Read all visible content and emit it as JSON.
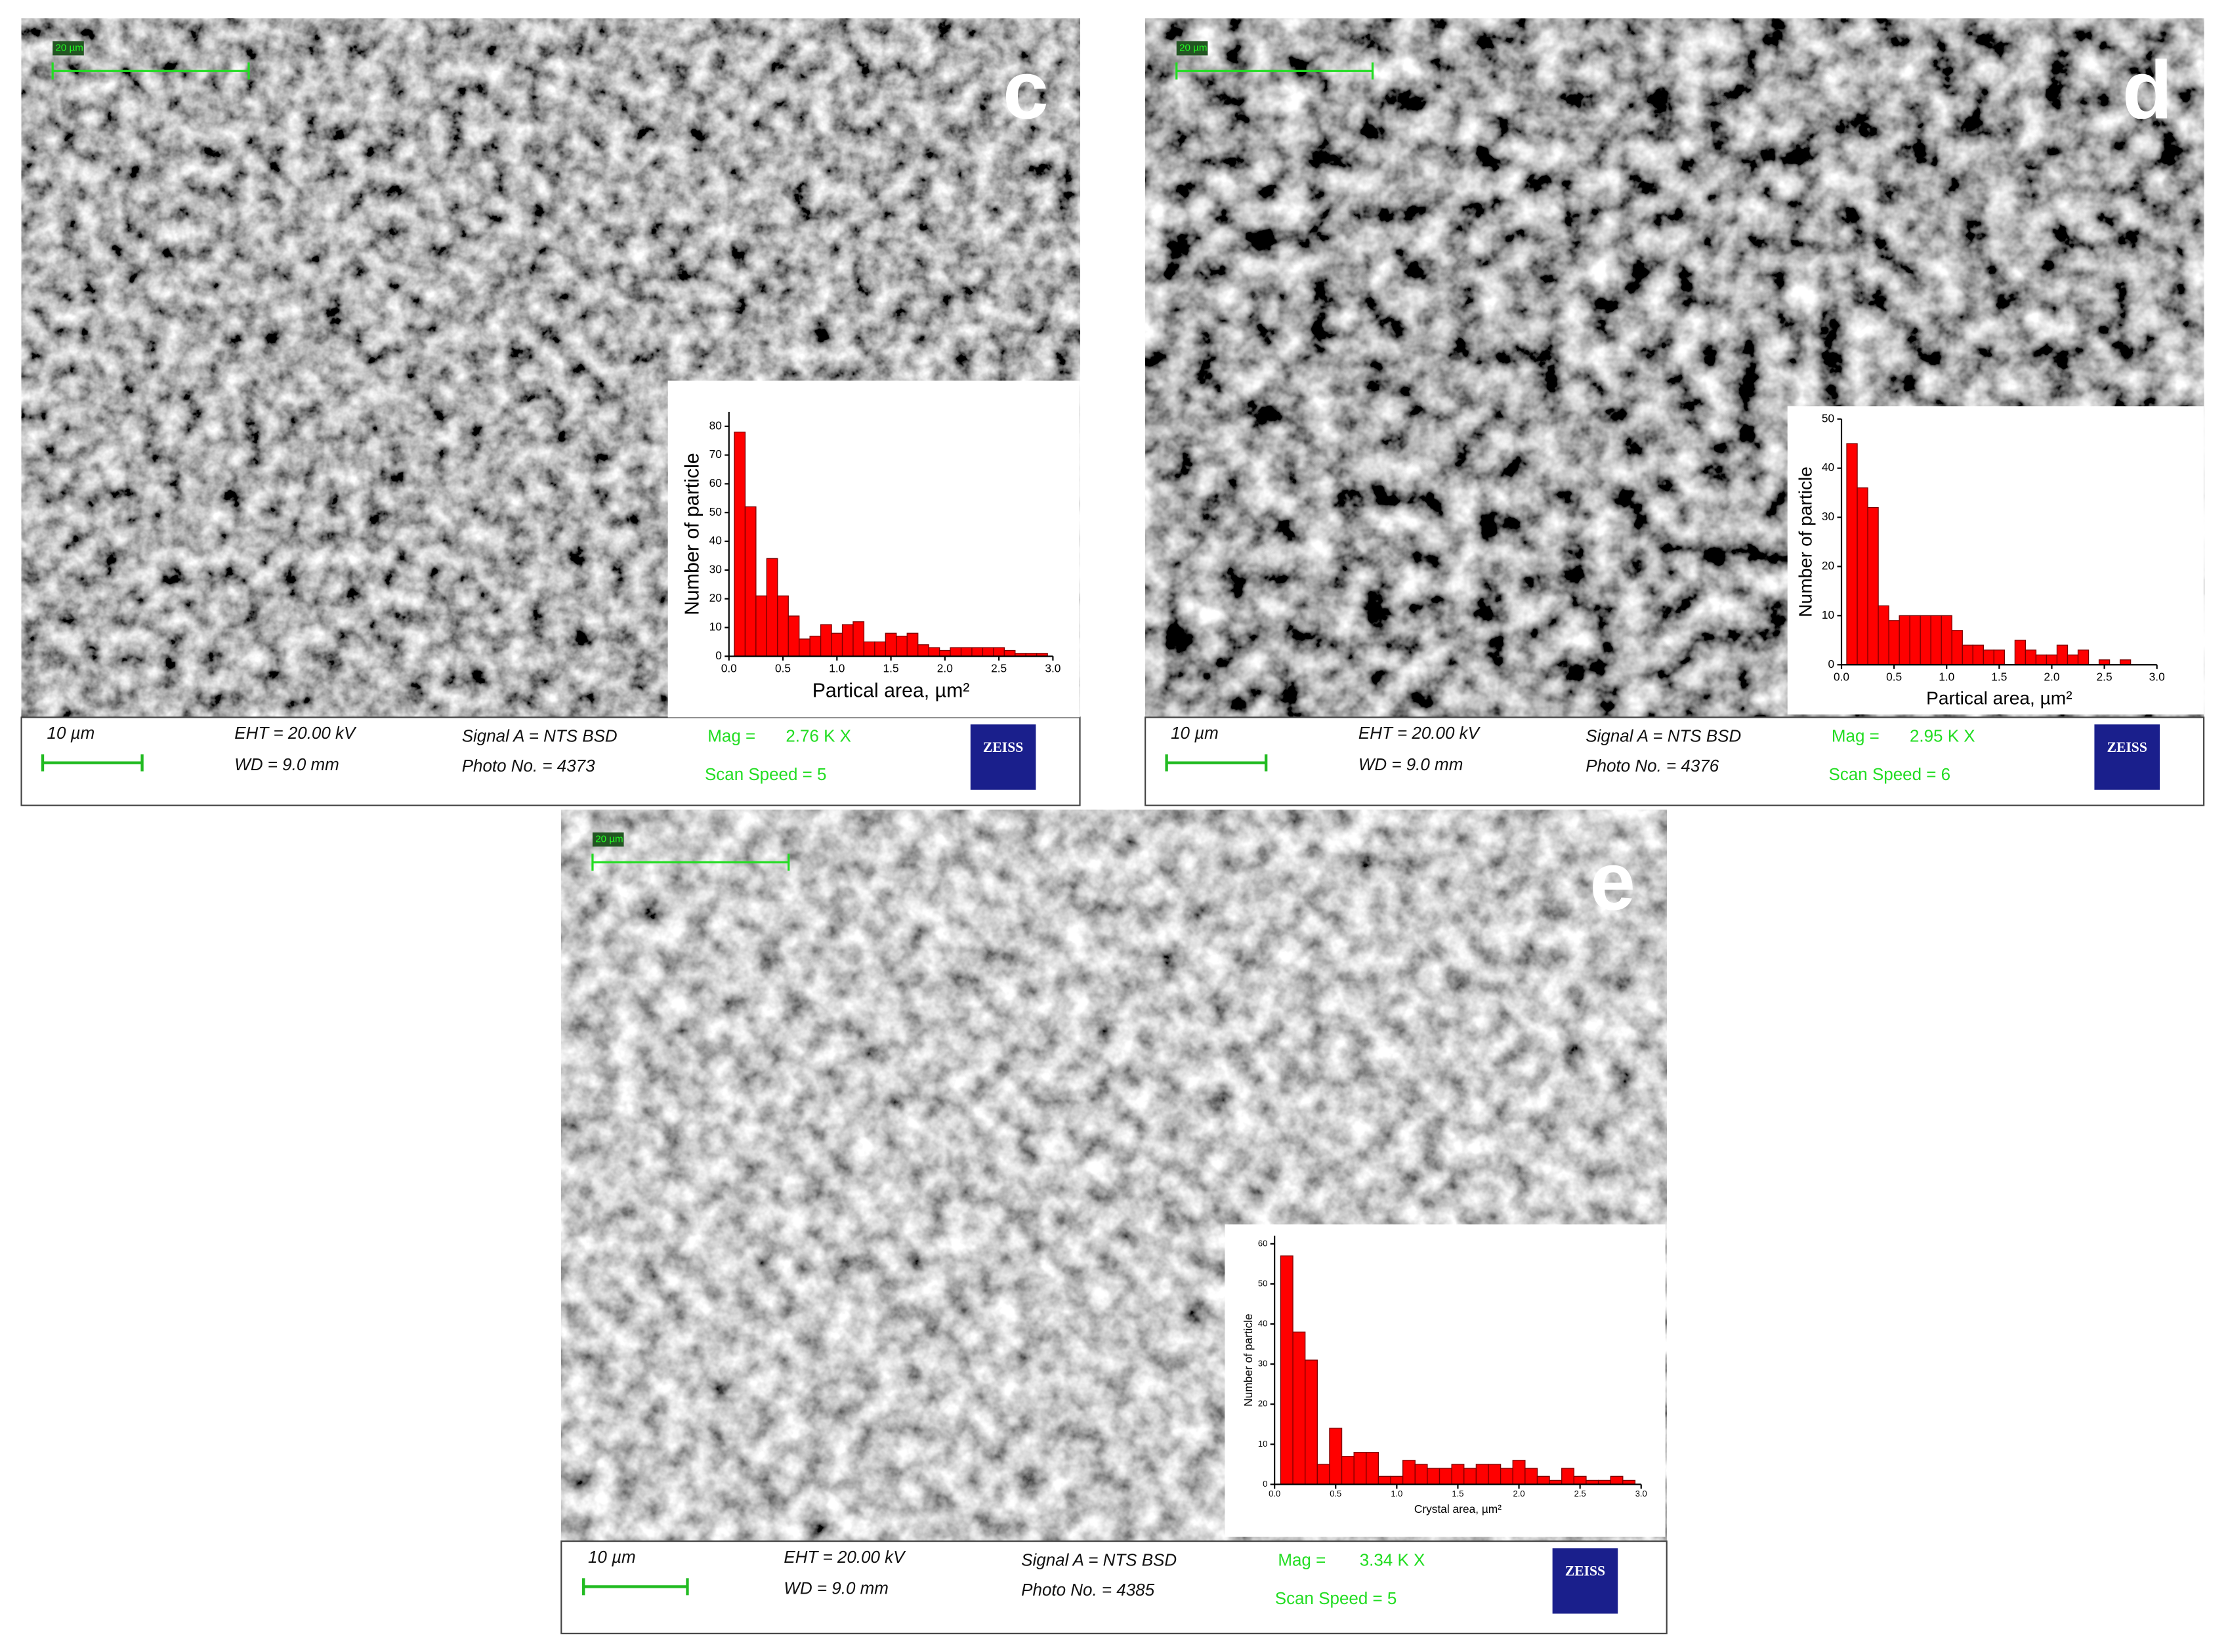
{
  "panels": [
    {
      "letter": "c",
      "top_scale": "20 µm",
      "scale": "10 µm",
      "eht": "EHT = 20.00 kV",
      "wd": "WD =  9.0 mm",
      "signal": "Signal A = NTS BSD",
      "photo": "Photo No. = 4373",
      "mag_label": "Mag = ",
      "mag": "2.76 K X",
      "scan": "Scan Speed = 5",
      "brand": "ZEISS"
    },
    {
      "letter": "d",
      "top_scale": "20 µm",
      "scale": "10 µm",
      "eht": "EHT = 20.00 kV",
      "wd": "WD =  9.0 mm",
      "signal": "Signal A = NTS BSD",
      "photo": "Photo No. = 4376",
      "mag_label": "Mag = ",
      "mag": "2.95 K X",
      "scan": "Scan Speed = 6",
      "brand": "ZEISS"
    },
    {
      "letter": "e",
      "top_scale": "20 µm",
      "scale": "10 µm",
      "eht": "EHT = 20.00 kV",
      "wd": "WD =  9.0 mm",
      "signal": "Signal A = NTS BSD",
      "photo": "Photo No. = 4385",
      "mag_label": "Mag = ",
      "mag": "3.34 K X",
      "scan": "Scan Speed = 5",
      "brand": "ZEISS"
    }
  ],
  "chart_data": [
    {
      "type": "histogram",
      "color": "#ff0000",
      "x_label": "Partical area, µm²",
      "y_label": "Number of particle",
      "bins": [
        0.05,
        0.15,
        0.25,
        0.35,
        0.45,
        0.55,
        0.65,
        0.75,
        0.85,
        0.95,
        1.05,
        1.15,
        1.25,
        1.35,
        1.45,
        1.55,
        1.65,
        1.75,
        1.85,
        1.95,
        2.05,
        2.15,
        2.25,
        2.35,
        2.45,
        2.55,
        2.65,
        2.75,
        2.85,
        2.95
      ],
      "counts": [
        78,
        52,
        21,
        34,
        21,
        14,
        6,
        7,
        11,
        8,
        11,
        12,
        5,
        5,
        8,
        7,
        8,
        4,
        3,
        2,
        3,
        3,
        3,
        3,
        3,
        2,
        1,
        1,
        1
      ],
      "xlim": [
        0,
        3
      ],
      "ylim": [
        0,
        85
      ],
      "xticks": [
        {
          "value": 0,
          "label": "0.0"
        },
        0.5,
        {
          "value": 1,
          "label": "1.0"
        },
        1.5,
        {
          "value": 2,
          "label": "2.0"
        },
        2.5,
        {
          "value": 3,
          "label": "3.0"
        }
      ],
      "yticks": [
        0,
        10,
        20,
        30,
        40,
        50,
        60,
        70,
        80
      ]
    },
    {
      "type": "histogram",
      "color": "#ff0000",
      "x_label": "Partical area, µm²",
      "y_label": "Number of particle",
      "bins": [
        0.05,
        0.15,
        0.25,
        0.35,
        0.45,
        0.55,
        0.65,
        0.75,
        0.85,
        0.95,
        1.05,
        1.15,
        1.25,
        1.35,
        1.45,
        1.55,
        1.65,
        1.75,
        1.85,
        1.95,
        2.05,
        2.15,
        2.25,
        2.35,
        2.45,
        2.55,
        2.65,
        2.75,
        2.85
      ],
      "counts": [
        45,
        36,
        32,
        12,
        9,
        10,
        10,
        10,
        10,
        10,
        7,
        4,
        4,
        3,
        3,
        0,
        5,
        3,
        2,
        2,
        4,
        2,
        3,
        0,
        1,
        0,
        1,
        0
      ],
      "xlim": [
        0,
        3
      ],
      "ylim": [
        0,
        50
      ],
      "xticks": [
        {
          "value": 0,
          "label": "0.0"
        },
        0.5,
        {
          "value": 1,
          "label": "1.0"
        },
        1.5,
        {
          "value": 2,
          "label": "2.0"
        },
        2.5,
        {
          "value": 3,
          "label": "3.0"
        }
      ],
      "yticks": [
        0,
        10,
        20,
        30,
        40,
        50
      ]
    },
    {
      "type": "histogram",
      "color": "#ff0000",
      "x_label": "Crystal area, µm²",
      "y_label": "Number of particle",
      "bins": [
        0.05,
        0.15,
        0.25,
        0.35,
        0.45,
        0.55,
        0.65,
        0.75,
        0.85,
        0.95,
        1.05,
        1.15,
        1.25,
        1.35,
        1.45,
        1.55,
        1.65,
        1.75,
        1.85,
        1.95,
        2.05,
        2.15,
        2.25,
        2.35,
        2.45,
        2.55,
        2.65,
        2.75,
        2.85,
        2.95
      ],
      "counts": [
        57,
        38,
        31,
        5,
        14,
        7,
        8,
        8,
        2,
        2,
        6,
        5,
        4,
        4,
        5,
        4,
        5,
        5,
        4,
        6,
        4,
        2,
        1,
        4,
        2,
        1,
        1,
        2,
        1
      ],
      "xlim": [
        0,
        3
      ],
      "ylim": [
        0,
        62
      ],
      "xticks": [
        {
          "value": 0,
          "label": "0.0"
        },
        0.5,
        {
          "value": 1,
          "label": "1.0"
        },
        1.5,
        {
          "value": 2,
          "label": "2.0"
        },
        2.5,
        {
          "value": 3,
          "label": "3.0"
        }
      ],
      "yticks": [
        0,
        10,
        20,
        30,
        40,
        50,
        60
      ]
    }
  ]
}
